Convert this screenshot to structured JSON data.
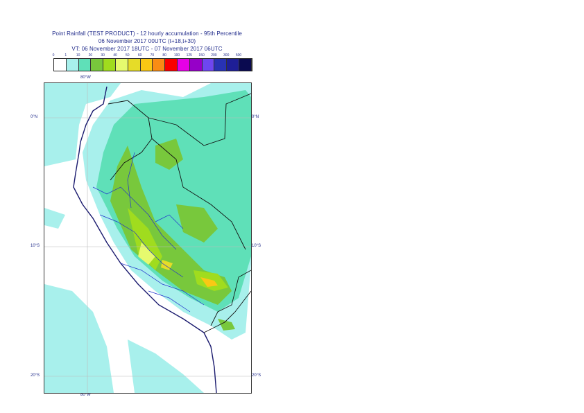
{
  "header": {
    "line1": "Point Rainfall (TEST PRODUCT) - 12 hourly accumulation - 95th Percentile",
    "line2": "06 November 2017 00UTC (t+18,t+30)",
    "line3": "VT: 06 November 2017 18UTC - 07 November 2017 06UTC"
  },
  "legend": {
    "labels": [
      "0",
      "1",
      "10",
      "20",
      "30",
      "40",
      "50",
      "60",
      "70",
      "80",
      "100",
      "125",
      "150",
      "200",
      "300",
      "500"
    ],
    "colors": [
      "#ffffff",
      "#a8f0ec",
      "#5fe0b8",
      "#78c83c",
      "#a0dc1e",
      "#e6fa6e",
      "#e6dc28",
      "#fac814",
      "#fa8c14",
      "#fa0000",
      "#e600e6",
      "#9600c8",
      "#6e46f0",
      "#2832b4",
      "#1e1e96",
      "#0a0a50"
    ]
  },
  "map": {
    "lon_label_top": "80°W",
    "lon_label_bottom": "80°W",
    "lat_labels": [
      "0°N",
      "10°S",
      "20°S"
    ]
  }
}
